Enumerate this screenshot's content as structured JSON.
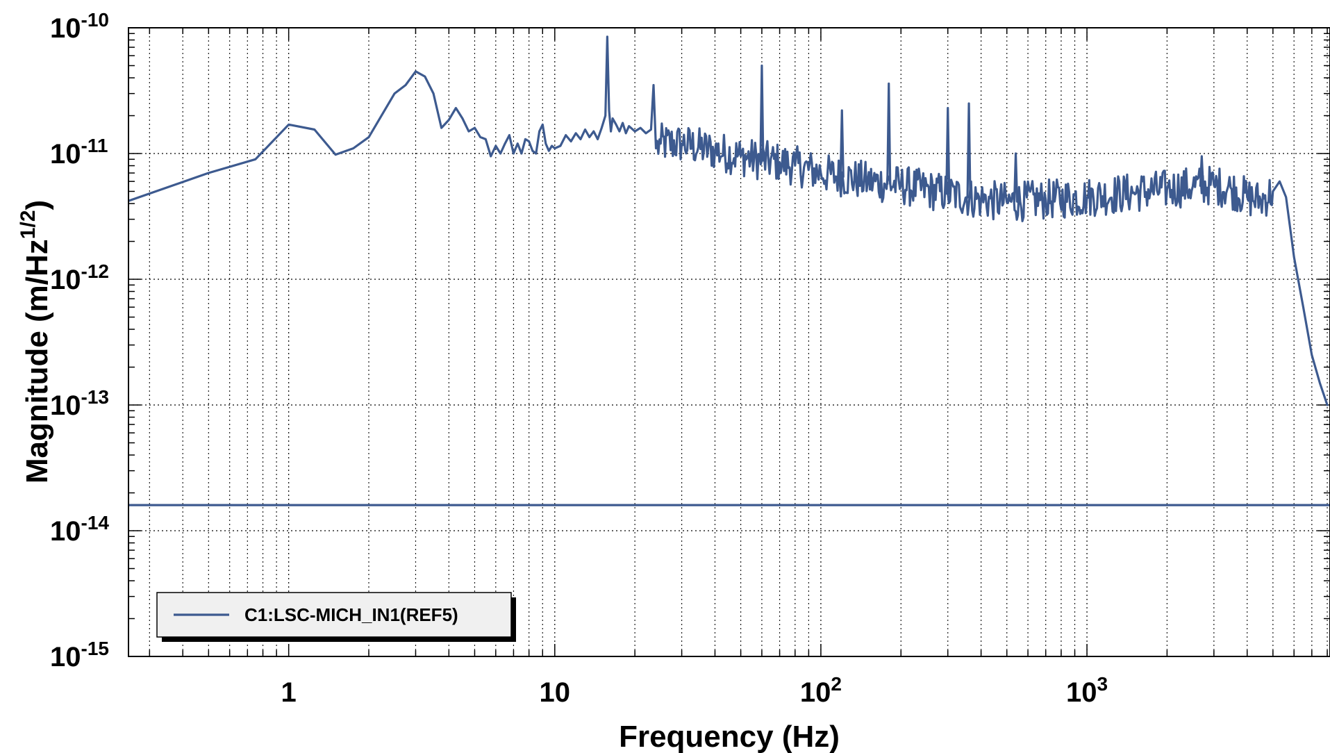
{
  "chart_data": {
    "type": "line",
    "title": "",
    "xlabel": "Frequency (Hz)",
    "ylabel": "Magnitude (m/Hz^(1/2))",
    "x_scale": "log",
    "y_scale": "log",
    "xlim": [
      0.25,
      8192
    ],
    "ylim": [
      1e-15,
      1e-10
    ],
    "grid": true,
    "legend_position": "bottom-left",
    "x_ticks": [
      {
        "value": 1,
        "label": "1",
        "sup": ""
      },
      {
        "value": 10,
        "label": "10",
        "sup": ""
      },
      {
        "value": 100,
        "label": "10",
        "sup": "2"
      },
      {
        "value": 1000,
        "label": "10",
        "sup": "3"
      }
    ],
    "y_ticks": [
      {
        "value": 1e-10,
        "label": "10",
        "sup": "-10"
      },
      {
        "value": 1e-11,
        "label": "10",
        "sup": "-11"
      },
      {
        "value": 1e-12,
        "label": "10",
        "sup": "-12"
      },
      {
        "value": 1e-13,
        "label": "10",
        "sup": "-13"
      },
      {
        "value": 1e-14,
        "label": "10",
        "sup": "-14"
      },
      {
        "value": 1e-15,
        "label": "10",
        "sup": "-15"
      }
    ],
    "series": [
      {
        "name": "C1:LSC-MICH_IN1(REF5)",
        "color": "#3d5a8f",
        "noise_band_hz": [
          24,
          5000
        ],
        "x": [
          0.25,
          0.5,
          0.75,
          1.0,
          1.25,
          1.5,
          1.75,
          2.0,
          2.5,
          2.75,
          3.0,
          3.25,
          3.5,
          3.75,
          4.0,
          4.25,
          4.5,
          4.75,
          5.0,
          5.25,
          5.5,
          5.75,
          6.0,
          6.25,
          6.5,
          6.75,
          7.0,
          7.25,
          7.5,
          7.75,
          8.0,
          8.25,
          8.5,
          8.75,
          9.0,
          9.25,
          9.5,
          9.75,
          10.0,
          10.5,
          11.0,
          11.5,
          12.0,
          12.5,
          13.0,
          13.5,
          14.0,
          14.5,
          15.0,
          15.5,
          15.75,
          16.0,
          16.25,
          16.5,
          17.0,
          17.5,
          18.0,
          18.5,
          19.0,
          20.0,
          21.0,
          22.0,
          23.0,
          23.5,
          24.0,
          25,
          30,
          40,
          50,
          60,
          70,
          80,
          100,
          150,
          200,
          300,
          400,
          500,
          700,
          1000,
          1500,
          2000,
          2500,
          3000,
          3500,
          4000,
          4500,
          5000,
          5300,
          5600,
          6000,
          6500,
          7000,
          7500,
          8000
        ],
        "y": [
          4.2e-12,
          7e-12,
          9e-12,
          1.7e-11,
          1.55e-11,
          9.8e-12,
          1.1e-11,
          1.35e-11,
          3e-11,
          3.5e-11,
          4.5e-11,
          4.1e-11,
          3e-11,
          1.6e-11,
          1.85e-11,
          2.3e-11,
          1.9e-11,
          1.5e-11,
          1.6e-11,
          1.35e-11,
          1.3e-11,
          9.5e-12,
          1.15e-11,
          1e-11,
          1.2e-11,
          1.4e-11,
          1e-11,
          1.2e-11,
          1e-11,
          1.3e-11,
          1.25e-11,
          1.05e-11,
          1e-11,
          1.5e-11,
          1.7e-11,
          1.2e-11,
          1.05e-11,
          1.15e-11,
          1.1e-11,
          1.15e-11,
          1.4e-11,
          1.25e-11,
          1.45e-11,
          1.3e-11,
          1.55e-11,
          1.35e-11,
          1.5e-11,
          1.3e-11,
          1.6e-11,
          2e-11,
          8.5e-11,
          2.2e-11,
          1.5e-11,
          1.9e-11,
          1.7e-11,
          1.5e-11,
          1.75e-11,
          1.45e-11,
          1.65e-11,
          1.5e-11,
          1.6e-11,
          1.45e-11,
          1.55e-11,
          3.5e-11,
          1.1e-11,
          1.2e-11,
          1.2e-11,
          1.05e-11,
          9.5e-12,
          8.8e-12,
          8.5e-12,
          8e-12,
          7e-12,
          6e-12,
          5.6e-12,
          4.8e-12,
          4.3e-12,
          4.1e-12,
          4.3e-12,
          4.5e-12,
          4.9e-12,
          5.2e-12,
          5.5e-12,
          5.6e-12,
          5.2e-12,
          4.5e-12,
          4.2e-12,
          5e-12,
          6e-12,
          4.5e-12,
          1.5e-12,
          6e-13,
          2.5e-13,
          1.5e-13,
          1e-13
        ],
        "peaks": [
          {
            "x": 60,
            "y": 5e-11
          },
          {
            "x": 120,
            "y": 2.2e-11
          },
          {
            "x": 180,
            "y": 3.6e-11
          },
          {
            "x": 300,
            "y": 2.3e-11
          },
          {
            "x": 360,
            "y": 2.5e-11
          },
          {
            "x": 540,
            "y": 1e-11
          },
          {
            "x": 2700,
            "y": 9.5e-12
          }
        ]
      },
      {
        "name": "",
        "color": "#3d5a8f",
        "x": [
          0.25,
          8192
        ],
        "y": [
          1.6e-14,
          1.6e-14
        ]
      }
    ]
  },
  "legend": {
    "label": "C1:LSC-MICH_IN1(REF5)",
    "color": "#3d5a8f"
  },
  "colors": {
    "series": "#3d5a8f",
    "legend_fill": "#f0f0f0"
  }
}
